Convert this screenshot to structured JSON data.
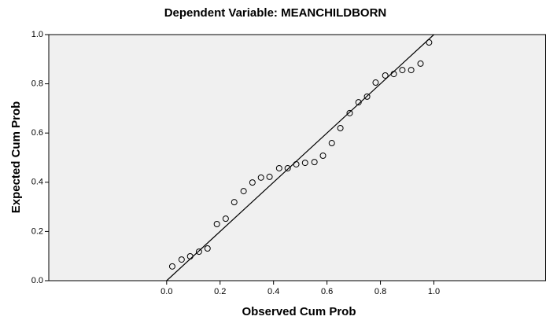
{
  "chart_data": {
    "type": "scatter",
    "title": "Dependent Variable: MEANCHILDBORN",
    "x_label": "Observed Cum Prob",
    "y_label": "Expected Cum Prob",
    "x": [
      0.021,
      0.056,
      0.088,
      0.121,
      0.153,
      0.188,
      0.221,
      0.253,
      0.288,
      0.321,
      0.353,
      0.385,
      0.421,
      0.453,
      0.485,
      0.518,
      0.553,
      0.585,
      0.618,
      0.65,
      0.685,
      0.718,
      0.75,
      0.782,
      0.818,
      0.85,
      0.882,
      0.915,
      0.95,
      0.982
    ],
    "values": [
      0.058,
      0.086,
      0.099,
      0.118,
      0.131,
      0.23,
      0.252,
      0.319,
      0.364,
      0.399,
      0.419,
      0.422,
      0.457,
      0.457,
      0.473,
      0.479,
      0.482,
      0.508,
      0.559,
      0.62,
      0.681,
      0.725,
      0.748,
      0.805,
      0.834,
      0.84,
      0.856,
      0.856,
      0.882,
      0.968
    ],
    "color": "#000000",
    "xlim": [
      -0.441,
      1.418
    ],
    "ylim": [
      0,
      1
    ],
    "xticks": [
      {
        "value": 0,
        "label": "0.0"
      },
      0.2,
      0.4,
      0.6,
      0.8,
      {
        "value": 1,
        "label": "1.0"
      }
    ],
    "yticks": [
      {
        "value": 0,
        "label": "0.0"
      },
      0.2,
      0.4,
      0.6,
      0.8,
      {
        "value": 1,
        "label": "1.0"
      }
    ],
    "reference_line": true
  }
}
